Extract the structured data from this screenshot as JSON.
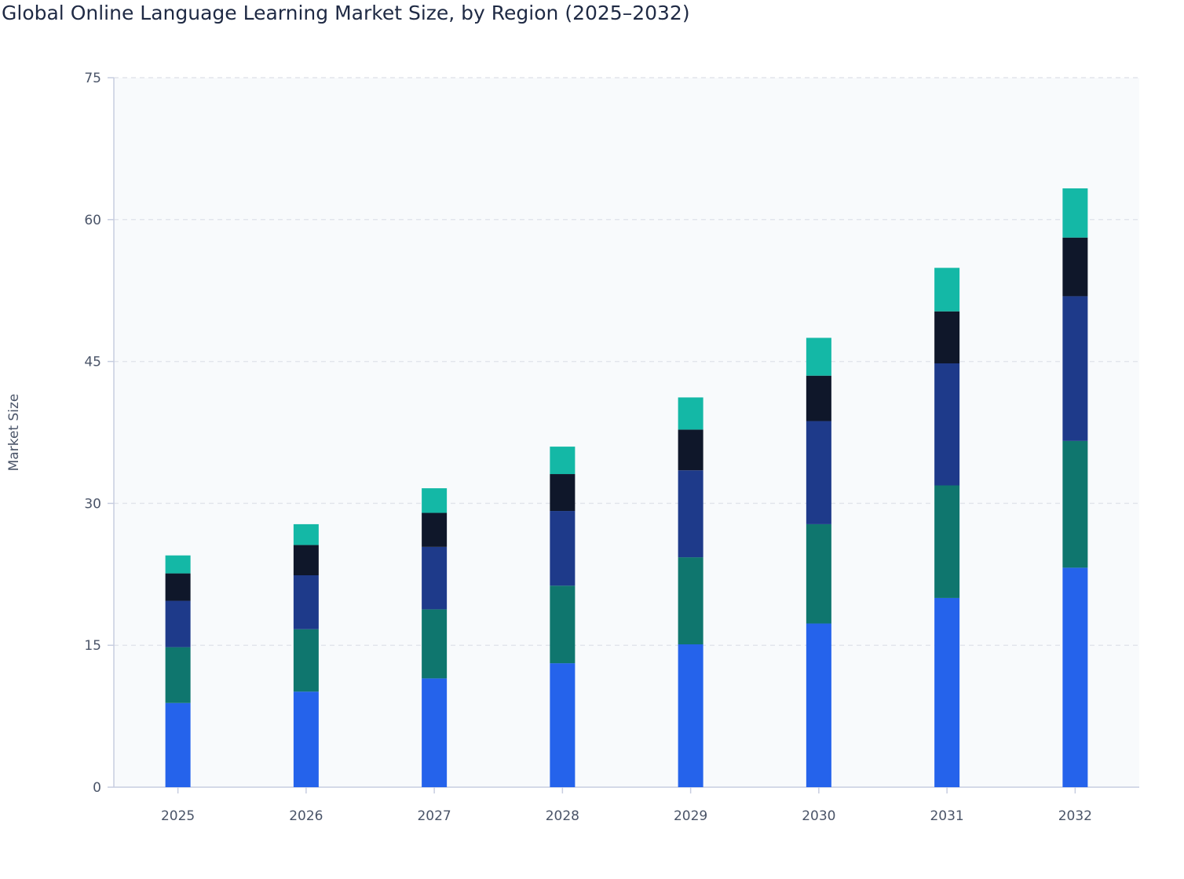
{
  "chart_data": {
    "type": "bar",
    "stacked": true,
    "title": "Global Online Language Learning Market Size, by Region (2025–2032)",
    "xlabel": "",
    "ylabel": "Market Size",
    "ylim": [
      0,
      75
    ],
    "yticks": [
      0,
      15,
      30,
      45,
      60,
      75
    ],
    "grid": true,
    "legend": "none",
    "categories": [
      "2025",
      "2026",
      "2027",
      "2028",
      "2029",
      "2030",
      "2031",
      "2032"
    ],
    "series": [
      {
        "color": "#2563eb",
        "values": [
          8.9,
          10.1,
          11.5,
          13.1,
          15.1,
          17.3,
          20.0,
          23.2
        ]
      },
      {
        "color": "#0f766e",
        "values": [
          5.9,
          6.6,
          7.3,
          8.2,
          9.2,
          10.5,
          11.9,
          13.4
        ]
      },
      {
        "color": "#1e3a8a",
        "values": [
          4.9,
          5.7,
          6.6,
          7.9,
          9.2,
          10.9,
          12.9,
          15.3
        ]
      },
      {
        "color": "#0f172a",
        "values": [
          2.9,
          3.2,
          3.6,
          3.9,
          4.3,
          4.8,
          5.5,
          6.2
        ]
      },
      {
        "color": "#14b8a6",
        "values": [
          1.9,
          2.2,
          2.6,
          2.9,
          3.4,
          4.0,
          4.6,
          5.2
        ]
      }
    ]
  }
}
